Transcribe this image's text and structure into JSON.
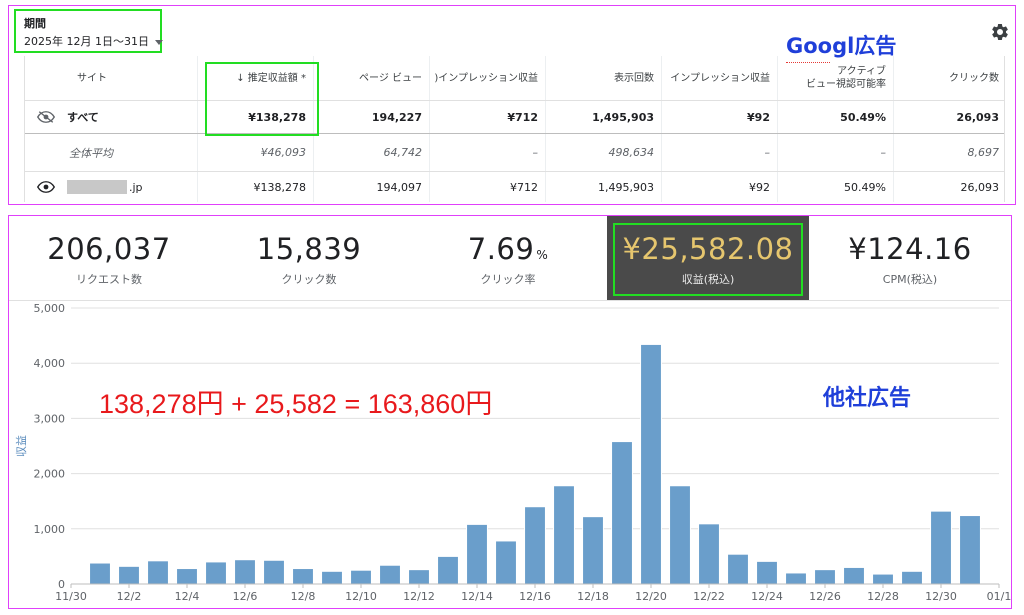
{
  "google": {
    "period_label": "期間",
    "period_value": "2025年 12月 1日〜31日",
    "section_title": "Googl広告",
    "columns": [
      "サイト",
      "↓ 推定収益額 *",
      "ページ ビュー",
      ")インプレッション収益",
      "表示回数",
      "インプレッション収益",
      "アクティブ",
      "ビュー視認可能率",
      "クリック数"
    ],
    "rows": [
      {
        "site": "すべて",
        "values": [
          "¥138,278",
          "194,227",
          "¥712",
          "1,495,903",
          "¥92",
          "50.49%",
          "26,093"
        ]
      },
      {
        "site": "全体平均",
        "values": [
          "¥46,093",
          "64,742",
          "–",
          "498,634",
          "–",
          "–",
          "8,697"
        ]
      },
      {
        "site": ".jp",
        "values": [
          "¥138,278",
          "194,097",
          "¥712",
          "1,495,903",
          "¥92",
          "50.49%",
          "26,093"
        ]
      }
    ]
  },
  "other": {
    "section_title": "他社広告",
    "annotation": "138,278円 + 25,582 = 163,860円",
    "metrics": [
      {
        "value": "206,037",
        "unit": "",
        "label": "リクエスト数"
      },
      {
        "value": "15,839",
        "unit": "",
        "label": "クリック数"
      },
      {
        "value": "7.69",
        "unit": "%",
        "label": "クリック率"
      },
      {
        "value": "¥25,582.08",
        "unit": "",
        "label": "収益(税込)"
      },
      {
        "value": "¥124.16",
        "unit": "",
        "label": "CPM(税込)"
      }
    ]
  },
  "chart_data": {
    "type": "bar",
    "ylabel": "収益",
    "ylim": [
      0,
      5000
    ],
    "yticks": [
      "0",
      "1,000",
      "2,000",
      "3,000",
      "4,000",
      "5,000"
    ],
    "xticks": [
      "11/30",
      "12/2",
      "12/4",
      "12/6",
      "12/8",
      "12/10",
      "12/12",
      "12/14",
      "12/16",
      "12/18",
      "12/20",
      "12/22",
      "12/24",
      "12/26",
      "12/28",
      "12/30",
      "01/1"
    ],
    "categories": [
      "12/1",
      "12/2",
      "12/3",
      "12/4",
      "12/5",
      "12/6",
      "12/7",
      "12/8",
      "12/9",
      "12/10",
      "12/11",
      "12/12",
      "12/13",
      "12/14",
      "12/15",
      "12/16",
      "12/17",
      "12/18",
      "12/19",
      "12/20",
      "12/21",
      "12/22",
      "12/23",
      "12/24",
      "12/25",
      "12/26",
      "12/27",
      "12/28",
      "12/29",
      "12/30",
      "12/31"
    ],
    "values": [
      380,
      320,
      420,
      280,
      400,
      440,
      430,
      280,
      230,
      250,
      340,
      260,
      500,
      1080,
      780,
      1400,
      1780,
      1220,
      2580,
      4340,
      1780,
      1090,
      540,
      410,
      200,
      260,
      300,
      180,
      230,
      1320,
      1240
    ],
    "bar_color": "#6a9ecb",
    "grid": true
  }
}
